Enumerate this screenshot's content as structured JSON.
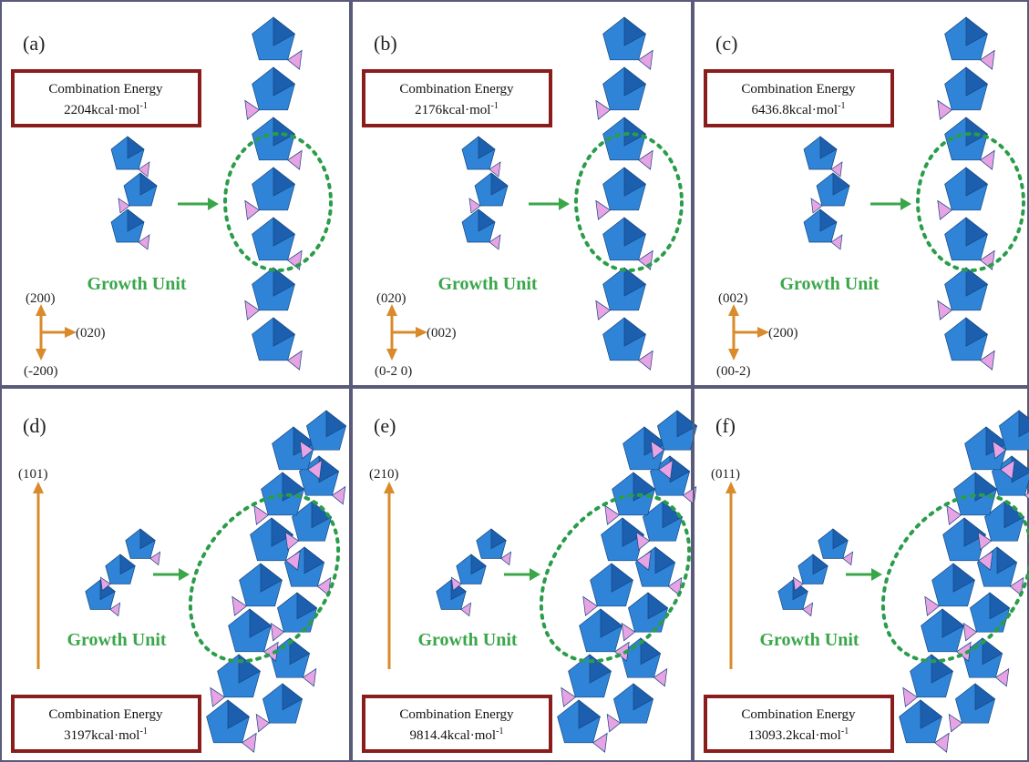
{
  "panels": [
    {
      "label": "(a)",
      "energy_title": "Combination Energy",
      "energy": "2204kcal·mol",
      "energy_exp": "-1",
      "growth_unit": "Growth Unit",
      "axes": {
        "up": "(200)",
        "right": "(020)",
        "down": "(-200)"
      }
    },
    {
      "label": "(b)",
      "energy_title": "Combination Energy",
      "energy": "2176kcal·mol",
      "energy_exp": "-1",
      "growth_unit": "Growth Unit",
      "axes": {
        "up": "(020)",
        "right": "(002)",
        "down": "(0-2 0)"
      }
    },
    {
      "label": "(c)",
      "energy_title": "Combination Energy",
      "energy": "6436.8kcal·mol",
      "energy_exp": "-1",
      "growth_unit": "Growth Unit",
      "axes": {
        "up": "(002)",
        "right": "(200)",
        "down": "(00-2)"
      }
    },
    {
      "label": "(d)",
      "energy_title": "Combination Energy",
      "energy": "3197kcal·mol",
      "energy_exp": "-1",
      "growth_unit": "Growth Unit",
      "axes": {
        "up": "(101)"
      }
    },
    {
      "label": "(e)",
      "energy_title": "Combination Energy",
      "energy": "9814.4kcal·mol",
      "energy_exp": "-1",
      "growth_unit": "Growth Unit",
      "axes": {
        "up": "(210)"
      }
    },
    {
      "label": "(f)",
      "energy_title": "Combination Energy",
      "energy": "13093.2kcal·mol",
      "energy_exp": "-1",
      "growth_unit": "Growth Unit",
      "axes": {
        "up": "(011)"
      }
    }
  ]
}
